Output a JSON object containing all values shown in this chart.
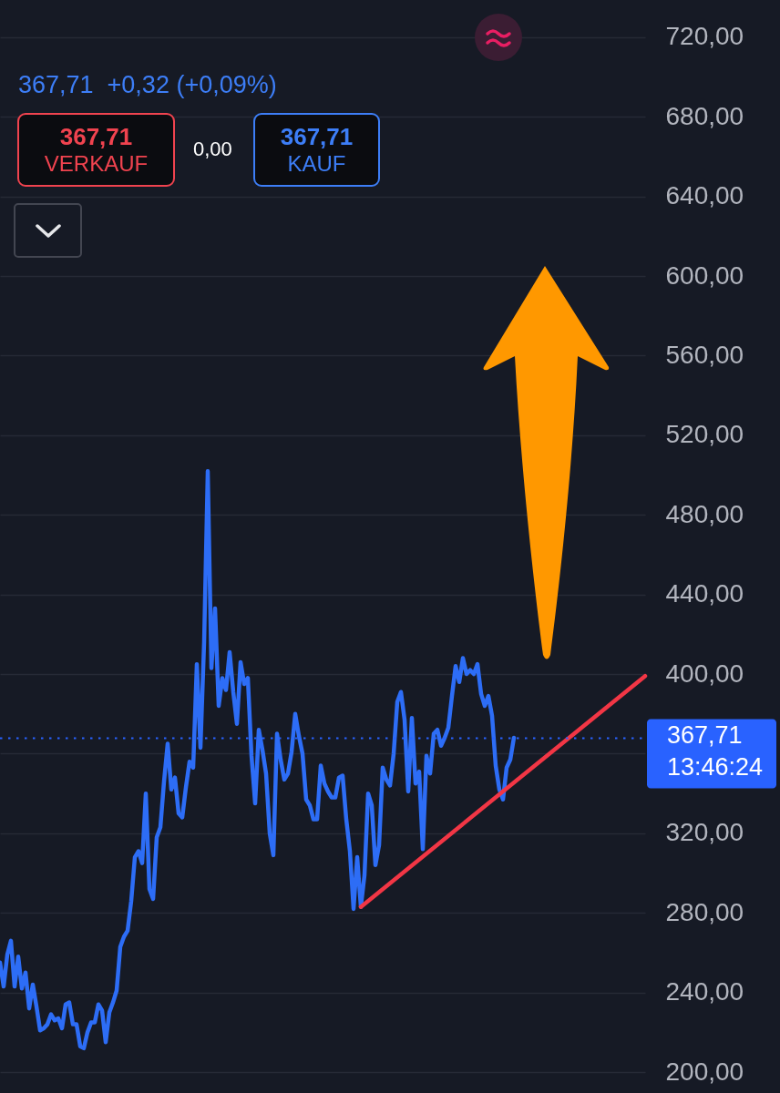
{
  "chart_data": {
    "type": "line",
    "subtitle": "367,71  +0,32 (+0,09%)",
    "categories": [
      null,
      null,
      null,
      null,
      null,
      null,
      null,
      null,
      null,
      null,
      null,
      null,
      null,
      null,
      null,
      null,
      null,
      null,
      null,
      null,
      null,
      null,
      null,
      null,
      null,
      null,
      null,
      null,
      null,
      null,
      null,
      null,
      null,
      null,
      null,
      null,
      null,
      null,
      null,
      null,
      null,
      null,
      null,
      null,
      null,
      null,
      null,
      null,
      null,
      null,
      null,
      null,
      null,
      null,
      null,
      null,
      null,
      null,
      null,
      null,
      null,
      null,
      null,
      null,
      null,
      null,
      null,
      null,
      null,
      null,
      null,
      null,
      null,
      null,
      null,
      null,
      null,
      null,
      null,
      null,
      null,
      null,
      null,
      null,
      null,
      null,
      null,
      null,
      null,
      null,
      null,
      null,
      null,
      null,
      null,
      null,
      null,
      null,
      null,
      null,
      null,
      null,
      null,
      null,
      null,
      null,
      null,
      null,
      null,
      null,
      null,
      null,
      null,
      null,
      null,
      null,
      null,
      null,
      null,
      null,
      null,
      null,
      null,
      null,
      null,
      null,
      null,
      null,
      null,
      null,
      null,
      null,
      null,
      null,
      null,
      null,
      null,
      null,
      null,
      null,
      null,
      null,
      null,
      null,
      null,
      null,
      null,
      null,
      null,
      null,
      null,
      null,
      null,
      null,
      null,
      null,
      null,
      null,
      null,
      null,
      null,
      null,
      null,
      null,
      null,
      null,
      null,
      null,
      null,
      null,
      null,
      null,
      null,
      null,
      null,
      null,
      null,
      null
    ],
    "series": [
      {
        "color": "#2d6df6",
        "values": [
          255,
          243,
          259,
          266,
          243,
          258,
          242,
          250,
          232,
          244,
          233,
          221,
          222,
          224,
          229,
          226,
          227,
          222,
          234,
          235,
          224,
          224,
          213,
          212,
          220,
          225,
          225,
          234,
          231,
          215,
          230,
          235,
          241,
          263,
          268,
          271,
          286,
          308,
          311,
          305,
          340,
          292,
          287,
          318,
          323,
          346,
          365,
          342,
          348,
          330,
          328,
          343,
          356,
          353,
          405,
          363,
          416,
          502,
          403,
          433,
          384,
          398,
          392,
          411,
          391,
          375,
          406,
          395,
          398,
          359,
          335,
          372,
          362,
          350,
          320,
          309,
          370,
          357,
          347,
          350,
          361,
          380,
          369,
          360,
          337,
          334,
          327,
          327,
          354,
          345,
          341,
          338,
          338,
          348,
          349,
          327,
          311,
          282,
          308,
          283,
          299,
          340,
          334,
          304,
          314,
          353,
          347,
          344,
          360,
          386,
          391,
          377,
          341,
          378,
          345,
          351,
          312,
          359,
          350,
          370,
          372,
          364,
          368,
          373,
          389,
          404,
          396,
          408,
          400,
          402,
          400,
          405,
          390,
          384,
          389,
          379,
          354,
          342,
          337,
          353,
          357,
          368,
          null,
          null,
          null,
          null,
          null,
          null,
          null,
          null,
          null,
          null,
          null,
          null,
          null,
          null,
          null,
          null,
          null,
          null,
          null,
          null,
          null,
          null,
          null,
          null,
          null,
          null,
          null,
          null,
          null,
          null,
          null,
          null,
          null,
          null,
          null,
          null
        ]
      },
      {
        "color": "#f23645",
        "values": [
          null,
          null,
          null,
          null,
          null,
          null,
          null,
          null,
          null,
          null,
          null,
          null,
          null,
          null,
          null,
          null,
          null,
          null,
          null,
          null,
          null,
          null,
          null,
          null,
          null,
          null,
          null,
          null,
          null,
          null,
          null,
          null,
          null,
          null,
          null,
          null,
          null,
          null,
          null,
          null,
          null,
          null,
          null,
          null,
          null,
          null,
          null,
          null,
          null,
          null,
          null,
          null,
          null,
          null,
          null,
          null,
          null,
          null,
          null,
          null,
          null,
          null,
          null,
          null,
          null,
          null,
          null,
          null,
          null,
          null,
          null,
          null,
          null,
          null,
          null,
          null,
          null,
          null,
          null,
          null,
          null,
          null,
          null,
          null,
          null,
          null,
          null,
          null,
          null,
          null,
          null,
          null,
          null,
          null,
          null,
          null,
          null,
          null,
          null,
          283,
          null,
          null,
          null,
          null,
          null,
          null,
          null,
          null,
          null,
          null,
          null,
          null,
          null,
          null,
          null,
          null,
          null,
          null,
          null,
          null,
          null,
          null,
          null,
          null,
          null,
          null,
          null,
          null,
          null,
          null,
          null,
          null,
          null,
          null,
          null,
          null,
          null,
          null,
          null,
          null,
          null,
          null,
          null,
          null,
          null,
          null,
          null,
          null,
          null,
          null,
          null,
          null,
          null,
          null,
          null,
          null,
          null,
          null,
          null,
          null,
          null,
          null,
          null,
          null,
          null,
          null,
          null,
          null,
          null,
          null,
          null,
          null,
          null,
          null,
          null,
          null,
          null,
          399
        ]
      }
    ],
    "ylim": [
      189.5,
      738.7
    ],
    "yticks": [
      {
        "value": 200,
        "label": "200,00"
      },
      {
        "value": 240,
        "label": "240,00"
      },
      {
        "value": 280,
        "label": "280,00"
      },
      {
        "value": 320,
        "label": "320,00"
      },
      {
        "value": 360,
        "label": null
      },
      {
        "value": 400,
        "label": "400,00"
      },
      {
        "value": 440,
        "label": "440,00"
      },
      {
        "value": 480,
        "label": "480,00"
      },
      {
        "value": 520,
        "label": "520,00"
      },
      {
        "value": 560,
        "label": "560,00"
      },
      {
        "value": 600,
        "label": "600,00"
      },
      {
        "value": 640,
        "label": "640,00"
      },
      {
        "value": 680,
        "label": "680,00"
      },
      {
        "value": 720,
        "label": "720,00"
      }
    ],
    "tick_labels": "y",
    "grid": "y",
    "ref_lines": [
      {
        "axis": "y",
        "value": 367.71,
        "label": "367,71",
        "color": "#2962ff",
        "line_style": "dotted"
      }
    ],
    "annotations": [
      "367,71",
      "VERKAUF",
      "0,00",
      "367,71",
      "KAUF",
      "13:46:24"
    ]
  }
}
